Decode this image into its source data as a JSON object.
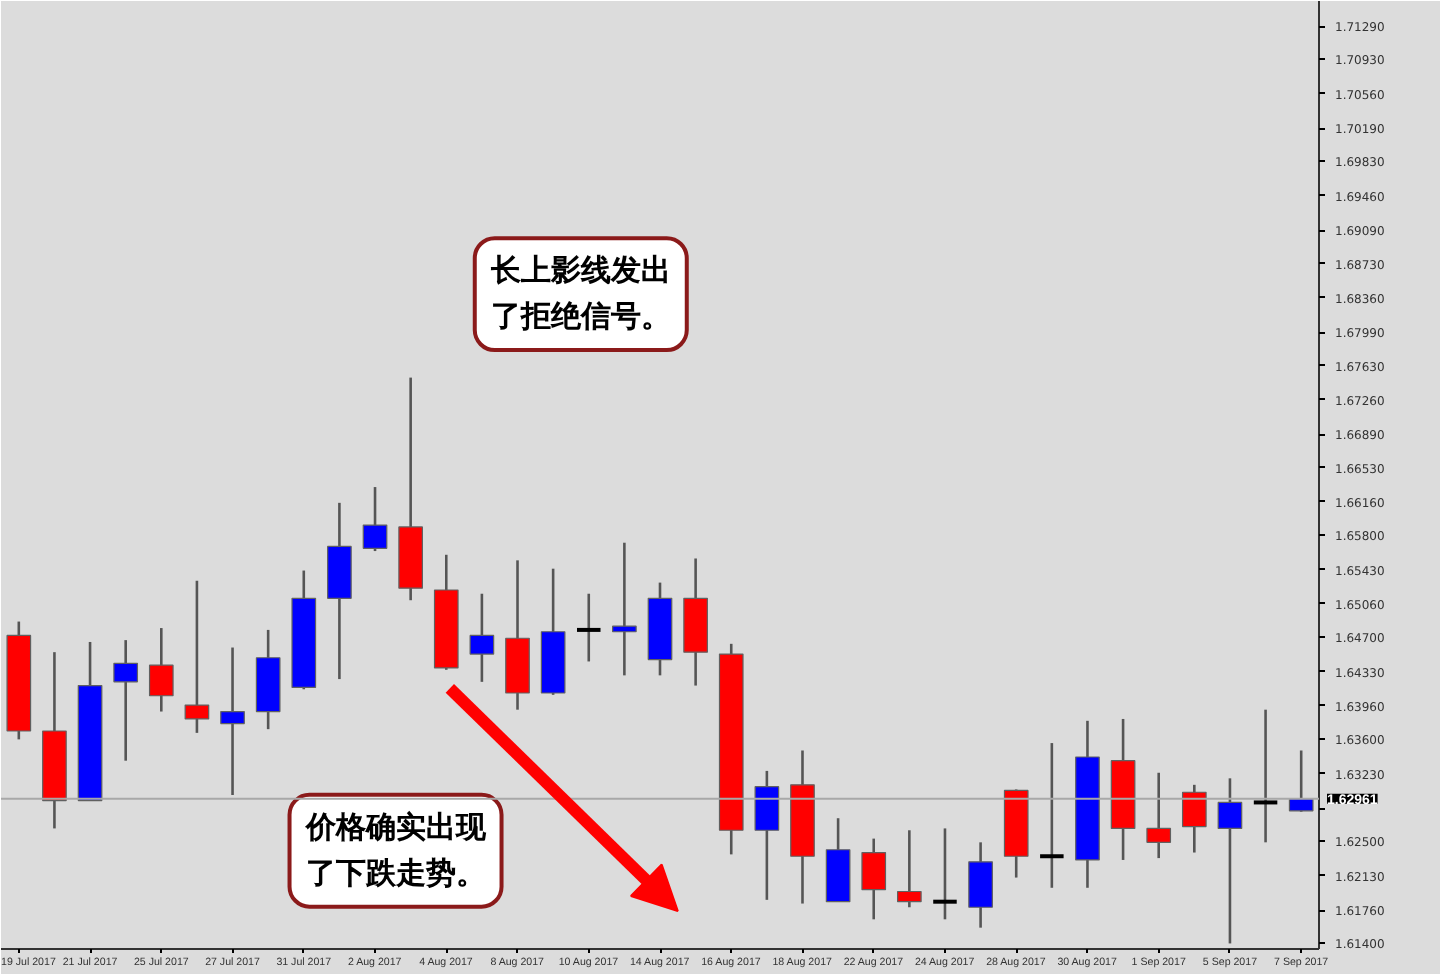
{
  "chart_data": {
    "type": "candlestick",
    "categories": [
      "19 Jul 2017",
      null,
      "21 Jul 2017",
      null,
      "25 Jul 2017",
      null,
      "27 Jul 2017",
      null,
      "31 Jul 2017",
      null,
      "2 Aug 2017",
      null,
      "4 Aug 2017",
      null,
      "8 Aug 2017",
      null,
      "10 Aug 2017",
      null,
      "14 Aug 2017",
      null,
      "16 Aug 2017",
      null,
      "18 Aug 2017",
      null,
      "22 Aug 2017",
      null,
      "24 Aug 2017",
      null,
      "28 Aug 2017",
      null,
      "30 Aug 2017",
      null,
      "1 Sep 2017",
      null,
      "5 Sep 2017",
      null,
      "7 Sep 2017"
    ],
    "ohlc": [
      [
        1.6472,
        1.6487,
        1.636,
        1.6369
      ],
      [
        1.6369,
        1.6454,
        1.6264,
        1.6294
      ],
      [
        1.6294,
        1.6465,
        1.6294,
        1.6418
      ],
      [
        1.6422,
        1.6467,
        1.6337,
        1.6442
      ],
      [
        1.644,
        1.648,
        1.639,
        1.6407
      ],
      [
        1.6397,
        1.6531,
        1.6367,
        1.6382
      ],
      [
        1.6377,
        1.6459,
        1.63,
        1.639
      ],
      [
        1.639,
        1.6478,
        1.6371,
        1.6448
      ],
      [
        1.6416,
        1.6542,
        1.6414,
        1.6512
      ],
      [
        1.6512,
        1.6615,
        1.6425,
        1.6568
      ],
      [
        1.6566,
        1.6632,
        1.6563,
        1.6591
      ],
      [
        1.6589,
        1.675,
        1.651,
        1.6523
      ],
      [
        1.6521,
        1.6559,
        1.6435,
        1.6437
      ],
      [
        1.6452,
        1.6517,
        1.6422,
        1.6472
      ],
      [
        1.6469,
        1.6553,
        1.6392,
        1.641
      ],
      [
        1.641,
        1.6544,
        1.6408,
        1.6476
      ],
      [
        1.6478,
        1.6517,
        1.6444,
        1.6478
      ],
      [
        1.6476,
        1.6572,
        1.6429,
        1.6482
      ],
      [
        1.6446,
        1.6529,
        1.6429,
        1.6512
      ],
      [
        1.6512,
        1.6555,
        1.6418,
        1.6454
      ],
      [
        1.6452,
        1.6463,
        1.6236,
        1.6262
      ],
      [
        1.6262,
        1.6326,
        1.6187,
        1.6309
      ],
      [
        1.6311,
        1.6348,
        1.6183,
        1.6234
      ],
      [
        1.6185,
        1.6275,
        1.6185,
        1.6241
      ],
      [
        1.6238,
        1.6253,
        1.6166,
        1.6198
      ],
      [
        1.6196,
        1.6262,
        1.6179,
        1.6185
      ],
      [
        1.6185,
        1.6264,
        1.6166,
        1.6185
      ],
      [
        1.6179,
        1.6249,
        1.6157,
        1.6228
      ],
      [
        1.6305,
        1.6306,
        1.6211,
        1.6234
      ],
      [
        1.6234,
        1.6356,
        1.62,
        1.6234
      ],
      [
        1.623,
        1.638,
        1.62,
        1.6341
      ],
      [
        1.6337,
        1.6382,
        1.623,
        1.6264
      ],
      [
        1.6264,
        1.6324,
        1.6232,
        1.6249
      ],
      [
        1.6303,
        1.6311,
        1.6238,
        1.6266
      ],
      [
        1.6264,
        1.6318,
        1.614,
        1.6292
      ],
      [
        1.6292,
        1.6392,
        1.6249,
        1.6292
      ],
      [
        1.6283,
        1.6348,
        1.6282,
        1.6296
      ]
    ],
    "colors": [
      "#ff0000",
      "#ff0000",
      "#0000ff",
      "#0000ff",
      "#ff0000",
      "#ff0000",
      "#0000ff",
      "#0000ff",
      "#0000ff",
      "#0000ff",
      "#0000ff",
      "#ff0000",
      "#ff0000",
      "#0000ff",
      "#ff0000",
      "#0000ff",
      "#000000",
      "#0000ff",
      "#0000ff",
      "#ff0000",
      "#ff0000",
      "#0000ff",
      "#ff0000",
      "#0000ff",
      "#ff0000",
      "#ff0000",
      "#000000",
      "#0000ff",
      "#ff0000",
      "#000000",
      "#0000ff",
      "#ff0000",
      "#ff0000",
      "#ff0000",
      "#0000ff",
      "#000000",
      "#0000ff"
    ],
    "ylim": [
      1.6134,
      1.7156
    ],
    "yticks": [
      {
        "value": 1.614,
        "label": "1.61400"
      },
      {
        "value": 1.6176,
        "label": "1.61760"
      },
      {
        "value": 1.6213,
        "label": "1.62130"
      },
      {
        "value": 1.625,
        "label": "1.62500"
      },
      {
        "value": 1.6286,
        "label": null
      },
      {
        "value": 1.6323,
        "label": "1.63230"
      },
      {
        "value": 1.636,
        "label": "1.63600"
      },
      {
        "value": 1.6396,
        "label": "1.63960"
      },
      {
        "value": 1.6433,
        "label": "1.64330"
      },
      {
        "value": 1.647,
        "label": "1.64700"
      },
      {
        "value": 1.6506,
        "label": "1.65060"
      },
      {
        "value": 1.6543,
        "label": "1.65430"
      },
      {
        "value": 1.658,
        "label": "1.65800"
      },
      {
        "value": 1.6616,
        "label": "1.66160"
      },
      {
        "value": 1.6653,
        "label": "1.66530"
      },
      {
        "value": 1.6689,
        "label": "1.66890"
      },
      {
        "value": 1.6726,
        "label": "1.67260"
      },
      {
        "value": 1.6763,
        "label": "1.67630"
      },
      {
        "value": 1.6799,
        "label": "1.67990"
      },
      {
        "value": 1.6836,
        "label": "1.68360"
      },
      {
        "value": 1.6873,
        "label": "1.68730"
      },
      {
        "value": 1.6909,
        "label": "1.69090"
      },
      {
        "value": 1.6946,
        "label": "1.69460"
      },
      {
        "value": 1.6983,
        "label": "1.69830"
      },
      {
        "value": 1.7019,
        "label": "1.70190"
      },
      {
        "value": 1.7056,
        "label": "1.70560"
      },
      {
        "value": 1.7093,
        "label": "1.70930"
      },
      {
        "value": 1.7129,
        "label": "1.71290"
      }
    ],
    "ref_lines": [
      {
        "axis": "y",
        "value": 1.62961,
        "label": "1.62961",
        "color": "#a8a8a8"
      }
    ],
    "annotations": [
      "长上影线发出了拒绝信号。",
      "价格确实出现了下跌走势。"
    ]
  }
}
